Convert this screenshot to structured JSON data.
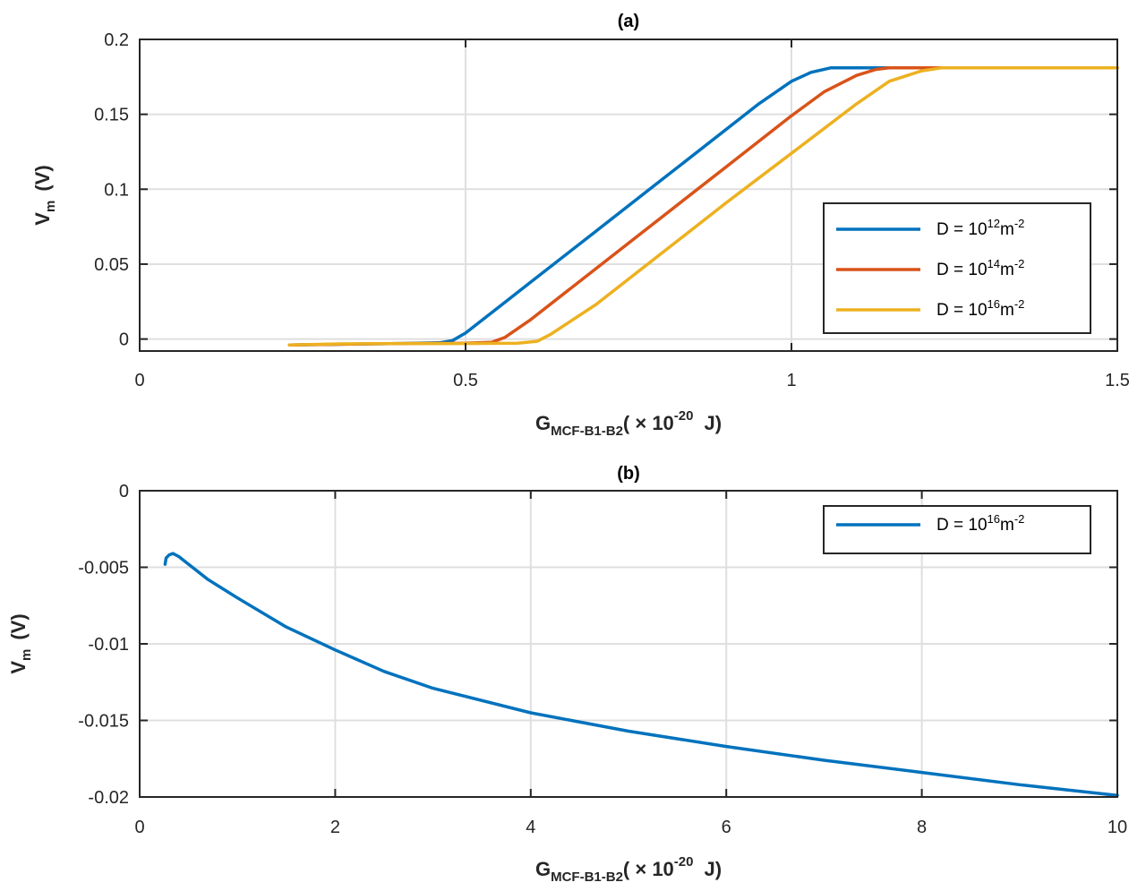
{
  "chart_data": [
    {
      "type": "line",
      "title": "(a)",
      "xlabel": {
        "main": "G",
        "sub": "MCF-B1-B2",
        "rest": "( × 10",
        "exp": "-20",
        "unit": "J)"
      },
      "ylabel": {
        "main": "V",
        "sub": "m",
        "unit": "(V)"
      },
      "xlim": [
        0,
        1.5
      ],
      "ylim": [
        -0.008,
        0.2
      ],
      "xticks": [
        0,
        0.5,
        1,
        1.5
      ],
      "xticklabels": [
        "0",
        "0.5",
        "1",
        "1.5"
      ],
      "yticks": [
        0,
        0.05,
        0.1,
        0.15,
        0.2
      ],
      "yticklabels": [
        "0",
        "0.05",
        "0.1",
        "0.15",
        "0.2"
      ],
      "grid": true,
      "legend_position": "lower-right",
      "series": [
        {
          "legend": {
            "prefix": "D  =  10",
            "exp": "12",
            "unit": "m",
            "unit_exp": "-2"
          },
          "color": "#0072BD",
          "x": [
            0.23,
            0.3,
            0.4,
            0.46,
            0.48,
            0.5,
            0.55,
            0.6,
            0.7,
            0.8,
            0.9,
            0.95,
            1.0,
            1.03,
            1.06,
            1.1,
            1.2,
            1.3,
            1.5
          ],
          "y": [
            -0.004,
            -0.0035,
            -0.003,
            -0.0025,
            -0.001,
            0.004,
            0.021,
            0.038,
            0.072,
            0.106,
            0.14,
            0.157,
            0.172,
            0.178,
            0.181,
            0.181,
            0.181,
            0.181,
            0.181
          ]
        },
        {
          "legend": {
            "prefix": "D  =  10",
            "exp": "14",
            "unit": "m",
            "unit_exp": "-2"
          },
          "color": "#D95319",
          "x": [
            0.23,
            0.3,
            0.4,
            0.5,
            0.54,
            0.56,
            0.6,
            0.7,
            0.8,
            0.9,
            1.0,
            1.05,
            1.1,
            1.13,
            1.15,
            1.2,
            1.3,
            1.5
          ],
          "y": [
            -0.004,
            -0.0035,
            -0.003,
            -0.0028,
            -0.0022,
            0.001,
            0.013,
            0.047,
            0.081,
            0.115,
            0.149,
            0.165,
            0.176,
            0.18,
            0.181,
            0.181,
            0.181,
            0.181
          ]
        },
        {
          "legend": {
            "prefix": "D  =  10",
            "exp": "16",
            "unit": "m",
            "unit_exp": "-2"
          },
          "color": "#EDB120",
          "x": [
            0.23,
            0.3,
            0.4,
            0.5,
            0.58,
            0.61,
            0.63,
            0.7,
            0.8,
            0.9,
            1.0,
            1.1,
            1.15,
            1.2,
            1.23,
            1.25,
            1.3,
            1.5
          ],
          "y": [
            -0.004,
            -0.0033,
            -0.003,
            -0.003,
            -0.0028,
            -0.0015,
            0.003,
            0.023,
            0.057,
            0.091,
            0.124,
            0.157,
            0.172,
            0.179,
            0.181,
            0.181,
            0.181,
            0.181
          ]
        }
      ]
    },
    {
      "type": "line",
      "title": "(b)",
      "xlabel": {
        "main": "G",
        "sub": "MCF-B1-B2",
        "rest": "( × 10",
        "exp": "-20",
        "unit": "J)"
      },
      "ylabel": {
        "main": "V",
        "sub": "m",
        "unit": "(V)"
      },
      "xlim": [
        0,
        10
      ],
      "ylim": [
        -0.02,
        0
      ],
      "xticks": [
        0,
        2,
        4,
        6,
        8,
        10
      ],
      "xticklabels": [
        "0",
        "2",
        "4",
        "6",
        "8",
        "10"
      ],
      "yticks": [
        0,
        -0.005,
        -0.01,
        -0.015,
        -0.02
      ],
      "yticklabels": [
        "0",
        "-0.005",
        "-0.01",
        "-0.015",
        "-0.02"
      ],
      "grid": true,
      "legend_position": "top-right",
      "series": [
        {
          "legend": {
            "prefix": "D  =  10",
            "exp": "16",
            "unit": "m",
            "unit_exp": "-2"
          },
          "color": "#0072BD",
          "x": [
            0.26,
            0.27,
            0.3,
            0.34,
            0.4,
            0.5,
            0.7,
            1.0,
            1.5,
            2.0,
            2.5,
            3.0,
            4.0,
            5.0,
            6.0,
            7.0,
            8.0,
            9.0,
            10.0
          ],
          "y": [
            -0.0048,
            -0.0044,
            -0.0042,
            -0.0041,
            -0.0043,
            -0.0048,
            -0.0058,
            -0.007,
            -0.0089,
            -0.0104,
            -0.0118,
            -0.0129,
            -0.0145,
            -0.0157,
            -0.0167,
            -0.0176,
            -0.0184,
            -0.0192,
            -0.0199
          ]
        }
      ]
    }
  ]
}
